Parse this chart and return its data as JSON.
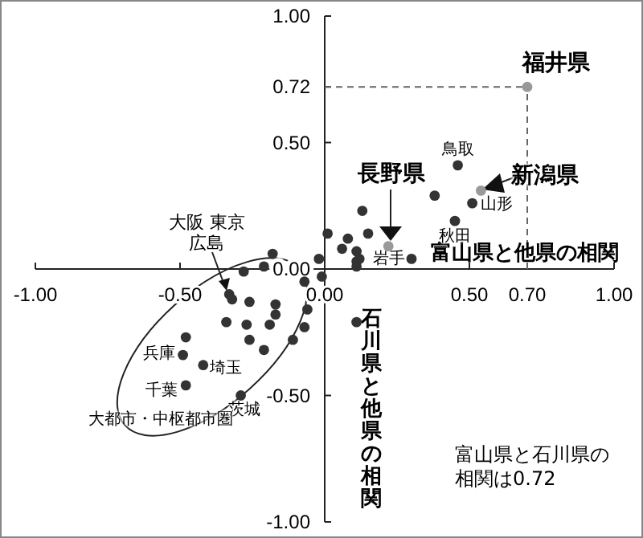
{
  "chart_data": {
    "type": "scatter",
    "xlabel": "富山県と他県の相関",
    "ylabel": "石川県と他県の相関",
    "xlim": [
      -1,
      1
    ],
    "ylim": [
      -1,
      1
    ],
    "xticks": [
      {
        "value": -1,
        "label": "-1.00"
      },
      {
        "value": -0.5,
        "label": "-0.50"
      },
      {
        "value": 0,
        "label": "0.00"
      },
      {
        "value": 0.5,
        "label": "0.50"
      },
      {
        "value": 0.7,
        "label": "0.70"
      },
      {
        "value": 1,
        "label": "1.00"
      }
    ],
    "yticks": [
      {
        "value": -1,
        "label": "-1.00"
      },
      {
        "value": -0.5,
        "label": "-0.50"
      },
      {
        "value": 0,
        "label": "0.00"
      },
      {
        "value": 0.5,
        "label": "0.50"
      },
      {
        "value": 0.72,
        "label": "0.72"
      },
      {
        "value": 1,
        "label": "1.00"
      }
    ],
    "x": [
      0.7,
      0.54,
      0.22,
      0.46,
      0.51,
      0.38,
      0.45,
      0.3,
      0.13,
      0.15,
      0.01,
      0.08,
      0.06,
      0.11,
      0.12,
      0.11,
      0.11,
      -0.02,
      -0.18,
      -0.21,
      -0.28,
      -0.07,
      -0.01,
      -0.06,
      -0.07,
      -0.11,
      0.11,
      -0.17,
      -0.17,
      -0.19,
      -0.21,
      -0.26,
      -0.26,
      -0.27,
      -0.34,
      -0.33,
      -0.32,
      -0.48,
      -0.49,
      -0.42,
      -0.48,
      -0.29
    ],
    "values": [
      0.72,
      0.31,
      0.09,
      0.41,
      0.26,
      0.29,
      0.19,
      0.04,
      0.23,
      0.14,
      0.14,
      0.12,
      0.08,
      0.07,
      0.04,
      0.03,
      0.01,
      0.04,
      0.06,
      0.01,
      -0.01,
      -0.05,
      -0.03,
      -0.16,
      -0.23,
      -0.28,
      -0.21,
      -0.14,
      -0.18,
      -0.22,
      -0.32,
      -0.28,
      -0.13,
      -0.22,
      -0.21,
      -0.1,
      -0.12,
      -0.27,
      -0.34,
      -0.38,
      -0.46,
      -0.5
    ],
    "colors": [
      "#999999",
      "#999999",
      "#999999",
      "#333333",
      "#333333",
      "#333333",
      "#333333",
      "#333333",
      "#333333",
      "#333333",
      "#333333",
      "#333333",
      "#333333",
      "#333333",
      "#333333",
      "#333333",
      "#333333",
      "#333333",
      "#333333",
      "#333333",
      "#333333",
      "#333333",
      "#333333",
      "#333333",
      "#333333",
      "#333333",
      "#333333",
      "#333333",
      "#333333",
      "#333333",
      "#333333",
      "#333333",
      "#333333",
      "#333333",
      "#333333",
      "#333333",
      "#333333",
      "#333333",
      "#333333",
      "#333333",
      "#333333",
      "#333333"
    ],
    "marker": "circle",
    "ref_lines": [
      {
        "axis": "x",
        "value": 0.7,
        "line_style": "dashed",
        "color": "#666666"
      },
      {
        "axis": "y",
        "value": 0.72,
        "line_style": "dashed",
        "color": "#666666"
      }
    ],
    "annotations": [
      {
        "text": "福井県",
        "x": 0.7,
        "y": 0.72
      },
      {
        "text": "新潟県",
        "x": 0.54,
        "y": 0.31
      },
      {
        "text": "長野県",
        "x": 0.22,
        "y": 0.09
      },
      {
        "text": "鳥取",
        "x": 0.46,
        "y": 0.41
      },
      {
        "text": "山形",
        "x": 0.51,
        "y": 0.26
      },
      {
        "text": "秋田",
        "x": 0.45,
        "y": 0.19
      },
      {
        "text": "岩手",
        "x": 0.3,
        "y": 0.04
      },
      {
        "text": "大阪 東京広島",
        "x": -0.33,
        "y": -0.1
      },
      {
        "text": "兵庫",
        "x": -0.49,
        "y": -0.34
      },
      {
        "text": "埼玉",
        "x": -0.42,
        "y": -0.38
      },
      {
        "text": "千葉",
        "x": -0.48,
        "y": -0.46
      },
      {
        "text": "茨城",
        "x": -0.29,
        "y": -0.5
      },
      "大都市・中枢都市圏",
      "富山県と石川県の相関は0.72"
    ]
  }
}
